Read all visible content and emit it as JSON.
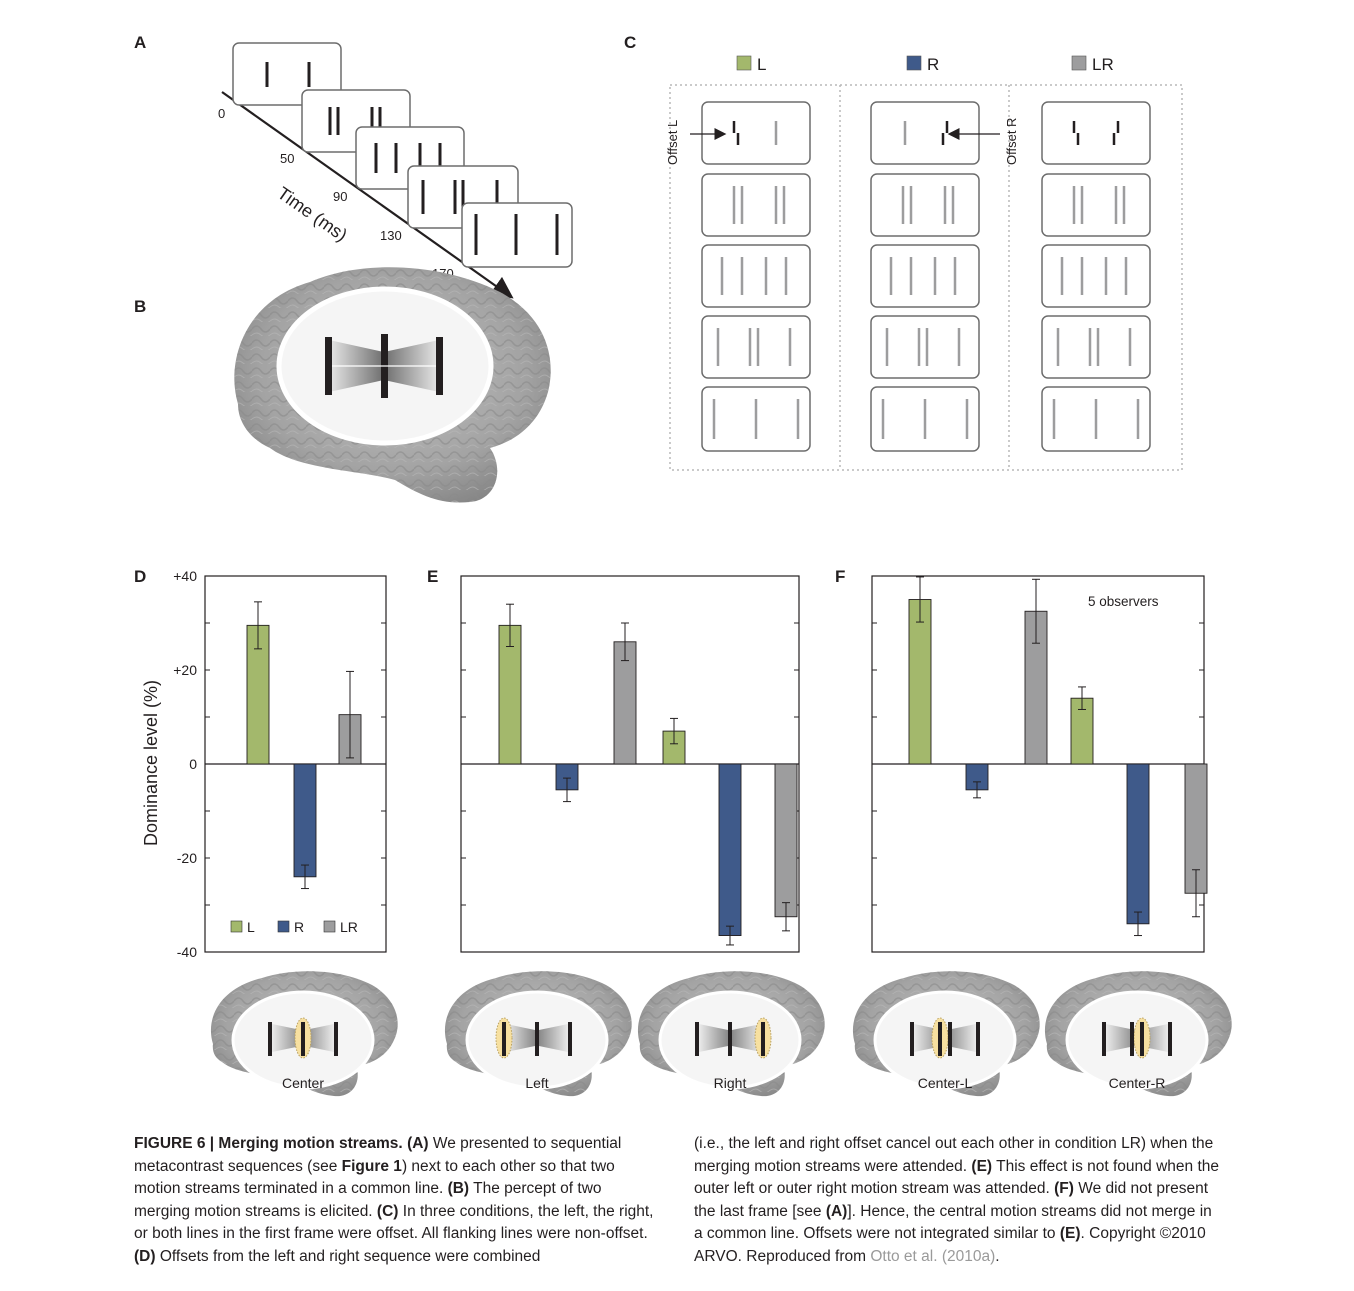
{
  "panels": {
    "a": {
      "letter": "A",
      "time_label": "Time (ms)",
      "ticks": [
        "0",
        "50",
        "90",
        "130",
        "170"
      ]
    },
    "b": {
      "letter": "B"
    },
    "c": {
      "letter": "C",
      "legend": [
        "L",
        "R",
        "LR"
      ],
      "offset_left": "Offset L",
      "offset_right": "Offset R"
    },
    "d": {
      "letter": "D"
    },
    "e": {
      "letter": "E"
    },
    "f": {
      "letter": "F",
      "annotation": "5 observers"
    }
  },
  "colors": {
    "L": "#a3b86c",
    "R": "#3f5a8a",
    "LR": "#9d9d9e",
    "attended": "#f7e0a0"
  },
  "chart_data": [
    {
      "panel": "D",
      "type": "bar",
      "ylabel": "Dominance level (%)",
      "yticks": [
        "+40",
        "+20",
        "0",
        "-20",
        "-40"
      ],
      "ylim": [
        -40,
        40
      ],
      "legend": [
        "L",
        "R",
        "LR"
      ],
      "legend_placement": "bottom",
      "groups": [
        {
          "label": "Center",
          "values": [
            29.5,
            -24,
            10.5
          ],
          "errors": [
            5,
            2.5,
            9.2
          ]
        }
      ]
    },
    {
      "panel": "E",
      "type": "bar",
      "ylim": [
        -40,
        40
      ],
      "groups": [
        {
          "label": "Left",
          "values": [
            29.5,
            -5.5,
            26
          ],
          "errors": [
            4.5,
            2.5,
            4
          ]
        },
        {
          "label": "Right",
          "values": [
            7,
            -36.5,
            -32.5
          ],
          "errors": [
            2.7,
            2,
            3
          ]
        }
      ]
    },
    {
      "panel": "F",
      "type": "bar",
      "ylim": [
        -40,
        40
      ],
      "groups": [
        {
          "label": "Center-L",
          "values": [
            35,
            -5.5,
            32.5
          ],
          "errors": [
            4.8,
            1.7,
            6.8
          ]
        },
        {
          "label": "Center-R",
          "values": [
            14,
            -34,
            -27.5
          ],
          "errors": [
            2.4,
            2.5,
            5
          ]
        }
      ]
    }
  ],
  "caption": {
    "figure_label": "FIGURE 6 | Merging motion streams.",
    "a_ref": "(A)",
    "a_text": " We presented to sequential metacontrast sequences (see ",
    "figure1_ref": "Figure 1",
    "a_text2": ") next to each other so that two motion streams terminated in a common line. ",
    "b_ref": "(B)",
    "b_text": " The percept of two merging motion streams is elicited. ",
    "c_ref": "(C)",
    "c_text": " In three conditions, the left, the right, or both lines in the first frame were offset. All flanking lines were non-offset. ",
    "d_ref": "(D)",
    "d_text": " Offsets from the left and right sequence were combined (i.e., the left and right offset cancel out each other in condition LR) when the merging motion streams were attended. ",
    "e_ref": "(E)",
    "e_text": " This effect is not found when the outer left or outer right motion stream was attended. ",
    "f_ref": "(F)",
    "f_text": " We did not present the last frame [see ",
    "f_a_ref": "(A)",
    "f_text2": "]. Hence, the central motion streams did not merge in a common line. Offsets were not integrated similar to ",
    "f_e_ref": "(E)",
    "f_text3": ". Copyright ©2010 ARVO. Reproduced from ",
    "citation": "Otto et al. (2010a)",
    "end": "."
  }
}
